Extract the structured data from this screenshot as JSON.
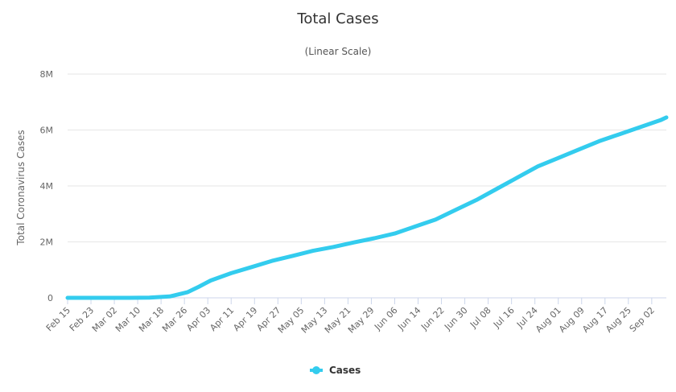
{
  "chart_data": {
    "type": "line",
    "title": "Total Cases",
    "subtitle": "(Linear Scale)",
    "xlabel": "",
    "ylabel": "Total Coronavirus Cases",
    "ylim": [
      0,
      8000000
    ],
    "y_ticks": [
      {
        "value": 0,
        "label": "0"
      },
      {
        "value": 2000000,
        "label": "2M"
      },
      {
        "value": 4000000,
        "label": "4M"
      },
      {
        "value": 6000000,
        "label": "6M"
      },
      {
        "value": 8000000,
        "label": "8M"
      }
    ],
    "x_ticks": [
      "Feb 15",
      "Feb 23",
      "Mar 02",
      "Mar 10",
      "Mar 18",
      "Mar 26",
      "Apr 03",
      "Apr 11",
      "Apr 19",
      "Apr 27",
      "May 05",
      "May 13",
      "May 21",
      "May 29",
      "Jun 06",
      "Jun 14",
      "Jun 22",
      "Jun 30",
      "Jul 08",
      "Jul 16",
      "Jul 24",
      "Aug 01",
      "Aug 09",
      "Aug 17",
      "Aug 25",
      "Sep 02"
    ],
    "x_domain": {
      "start_day": 0,
      "end_day": 205
    },
    "series": [
      {
        "name": "Cases",
        "color": "#33ccee",
        "points": [
          [
            0,
            15
          ],
          [
            7,
            18
          ],
          [
            14,
            80
          ],
          [
            21,
            1000
          ],
          [
            28,
            10000
          ],
          [
            35,
            50000
          ],
          [
            41,
            200000
          ],
          [
            45,
            400000
          ],
          [
            49,
            620000
          ],
          [
            56,
            880000
          ],
          [
            63,
            1100000
          ],
          [
            70,
            1320000
          ],
          [
            77,
            1500000
          ],
          [
            84,
            1680000
          ],
          [
            91,
            1820000
          ],
          [
            98,
            1980000
          ],
          [
            105,
            2130000
          ],
          [
            112,
            2300000
          ],
          [
            119,
            2550000
          ],
          [
            126,
            2800000
          ],
          [
            133,
            3150000
          ],
          [
            140,
            3500000
          ],
          [
            147,
            3900000
          ],
          [
            154,
            4300000
          ],
          [
            161,
            4700000
          ],
          [
            168,
            5000000
          ],
          [
            175,
            5300000
          ],
          [
            182,
            5600000
          ],
          [
            189,
            5850000
          ],
          [
            196,
            6100000
          ],
          [
            203,
            6350000
          ],
          [
            205,
            6450000
          ]
        ]
      }
    ],
    "legend": {
      "position": "bottom-center",
      "entries": [
        "Cases"
      ]
    },
    "grid": true
  }
}
